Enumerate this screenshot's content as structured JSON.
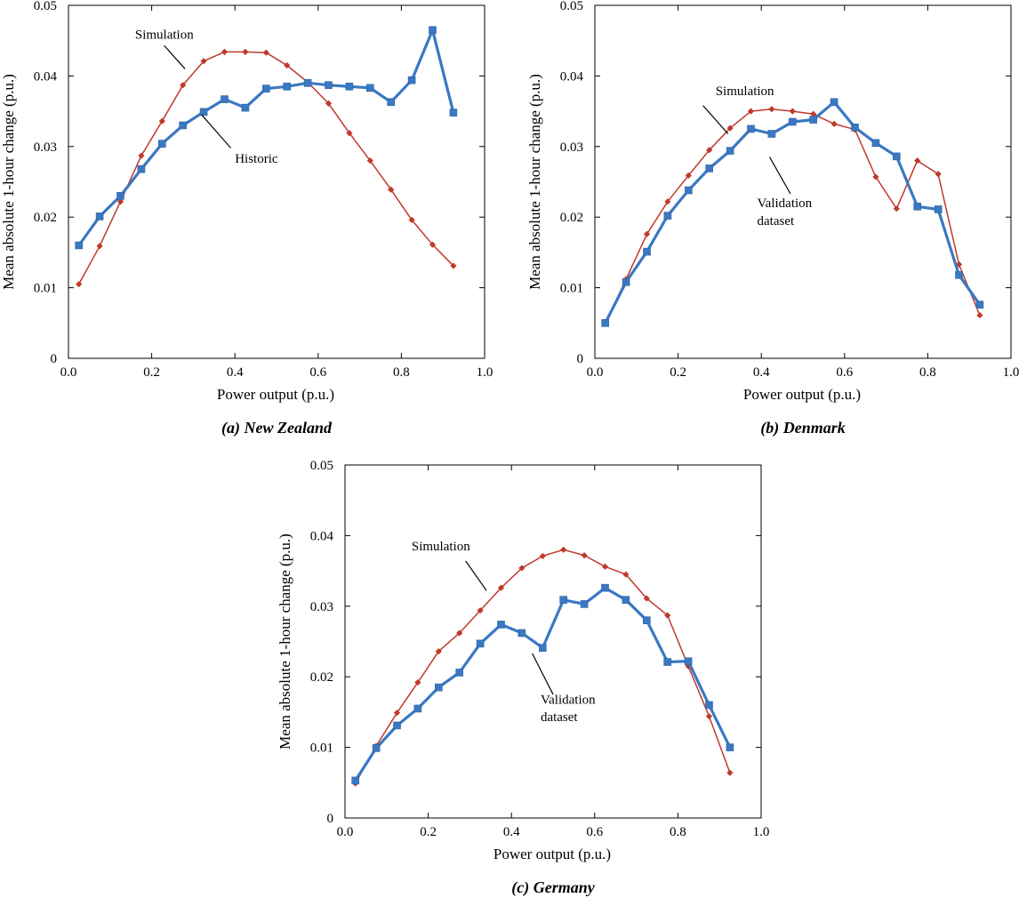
{
  "chart_data": [
    {
      "type": "line",
      "panel_caption": "(a) New Zealand",
      "xlabel": "Power output (p.u.)",
      "ylabel": "Mean absolute 1-hour change (p.u.)",
      "xlim": [
        0,
        1.0
      ],
      "ylim": [
        0,
        0.05
      ],
      "xticks": [
        "0.0",
        "0.2",
        "0.4",
        "0.6",
        "0.8",
        "1.0"
      ],
      "yticks": [
        "0",
        "0.01",
        "0.02",
        "0.03",
        "0.04",
        "0.05"
      ],
      "grid": false,
      "x": [
        0.025,
        0.075,
        0.125,
        0.175,
        0.225,
        0.275,
        0.325,
        0.375,
        0.425,
        0.475,
        0.525,
        0.575,
        0.625,
        0.675,
        0.725,
        0.775,
        0.825,
        0.875,
        0.925
      ],
      "series": [
        {
          "name": "Simulation",
          "marker": "diamond",
          "color": "#c0392b",
          "values": [
            0.0105,
            0.0159,
            0.0222,
            0.0287,
            0.0336,
            0.0387,
            0.0421,
            0.0434,
            0.0434,
            0.0433,
            0.0415,
            0.0391,
            0.0361,
            0.0319,
            0.028,
            0.0239,
            0.0196,
            0.0161,
            0.0131
          ]
        },
        {
          "name": "Historic",
          "marker": "square",
          "color": "#3a78c2",
          "values": [
            0.016,
            0.0201,
            0.023,
            0.0268,
            0.0304,
            0.033,
            0.0349,
            0.0367,
            0.0355,
            0.0382,
            0.0385,
            0.039,
            0.0387,
            0.0385,
            0.0383,
            0.0363,
            0.0394,
            0.0465,
            0.0348
          ]
        }
      ],
      "annotations": [
        {
          "text": "Simulation",
          "x": 0.16,
          "y": 0.0453,
          "line": [
            [
              0.23,
              0.0443
            ],
            [
              0.28,
              0.041
            ]
          ]
        },
        {
          "text": "Historic",
          "x": 0.4,
          "y": 0.0277,
          "line": [
            [
              0.32,
              0.0345
            ],
            [
              0.39,
              0.0298
            ]
          ]
        }
      ]
    },
    {
      "type": "line",
      "panel_caption": "(b) Denmark",
      "xlabel": "Power output (p.u.)",
      "ylabel": "Mean absolute 1-hour change (p.u.)",
      "xlim": [
        0,
        1.0
      ],
      "ylim": [
        0,
        0.05
      ],
      "xticks": [
        "0.0",
        "0.2",
        "0.4",
        "0.6",
        "0.8",
        "1.0"
      ],
      "yticks": [
        "0",
        "0.01",
        "0.02",
        "0.03",
        "0.04",
        "0.05"
      ],
      "grid": false,
      "x": [
        0.025,
        0.075,
        0.125,
        0.175,
        0.225,
        0.275,
        0.325,
        0.375,
        0.425,
        0.475,
        0.525,
        0.575,
        0.625,
        0.675,
        0.725,
        0.775,
        0.825,
        0.875,
        0.925
      ],
      "series": [
        {
          "name": "Simulation",
          "marker": "diamond",
          "color": "#c0392b",
          "values": [
            0.005,
            0.0112,
            0.0176,
            0.0222,
            0.0259,
            0.0295,
            0.0326,
            0.035,
            0.0353,
            0.035,
            0.0346,
            0.0332,
            0.0324,
            0.0257,
            0.0212,
            0.028,
            0.0261,
            0.0133,
            0.0061
          ]
        },
        {
          "name": "Validation dataset",
          "marker": "square",
          "color": "#3a78c2",
          "values": [
            0.005,
            0.0108,
            0.0151,
            0.0202,
            0.0238,
            0.0269,
            0.0294,
            0.0325,
            0.0318,
            0.0335,
            0.0338,
            0.0363,
            0.0327,
            0.0305,
            0.0286,
            0.0215,
            0.0211,
            0.0118,
            0.0076
          ]
        }
      ],
      "annotations": [
        {
          "text": "Simulation",
          "x": 0.29,
          "y": 0.0373,
          "line": [
            [
              0.26,
              0.0358
            ],
            [
              0.32,
              0.0318
            ]
          ]
        },
        {
          "text": "Validation",
          "x": 0.39,
          "y": 0.0214,
          "line": [
            [
              0.42,
              0.0285
            ],
            [
              0.47,
              0.0233
            ]
          ]
        },
        {
          "text": "dataset",
          "x": 0.39,
          "y": 0.0189
        }
      ]
    },
    {
      "type": "line",
      "panel_caption": "(c) Germany",
      "xlabel": "Power output (p.u.)",
      "ylabel": "Mean absolute 1-hour change (p.u.)",
      "xlim": [
        0,
        1.0
      ],
      "ylim": [
        0,
        0.05
      ],
      "xticks": [
        "0.0",
        "0.2",
        "0.4",
        "0.6",
        "0.8",
        "1.0"
      ],
      "yticks": [
        "0",
        "0.01",
        "0.02",
        "0.03",
        "0.04",
        "0.05"
      ],
      "grid": false,
      "x": [
        0.025,
        0.075,
        0.125,
        0.175,
        0.225,
        0.275,
        0.325,
        0.375,
        0.425,
        0.475,
        0.525,
        0.575,
        0.625,
        0.675,
        0.725,
        0.775,
        0.825,
        0.875,
        0.925
      ],
      "series": [
        {
          "name": "Simulation",
          "marker": "diamond",
          "color": "#c0392b",
          "values": [
            0.0049,
            0.0102,
            0.0149,
            0.0192,
            0.0236,
            0.0262,
            0.0294,
            0.0326,
            0.0354,
            0.0371,
            0.038,
            0.0372,
            0.0356,
            0.0345,
            0.0311,
            0.0287,
            0.0215,
            0.0144,
            0.0064
          ]
        },
        {
          "name": "Validation dataset",
          "marker": "square",
          "color": "#3a78c2",
          "values": [
            0.0053,
            0.0099,
            0.0131,
            0.0155,
            0.0185,
            0.0206,
            0.0247,
            0.0274,
            0.0262,
            0.0241,
            0.0309,
            0.0303,
            0.0326,
            0.0309,
            0.028,
            0.0221,
            0.0222,
            0.016,
            0.01
          ]
        }
      ],
      "annotations": [
        {
          "text": "Simulation",
          "x": 0.16,
          "y": 0.0379,
          "line": [
            [
              0.29,
              0.0364
            ],
            [
              0.34,
              0.0322
            ]
          ]
        },
        {
          "text": "Validation",
          "x": 0.47,
          "y": 0.0162,
          "line": [
            [
              0.45,
              0.0233
            ],
            [
              0.5,
              0.0175
            ]
          ]
        },
        {
          "text": "dataset",
          "x": 0.47,
          "y": 0.0137
        }
      ]
    }
  ]
}
